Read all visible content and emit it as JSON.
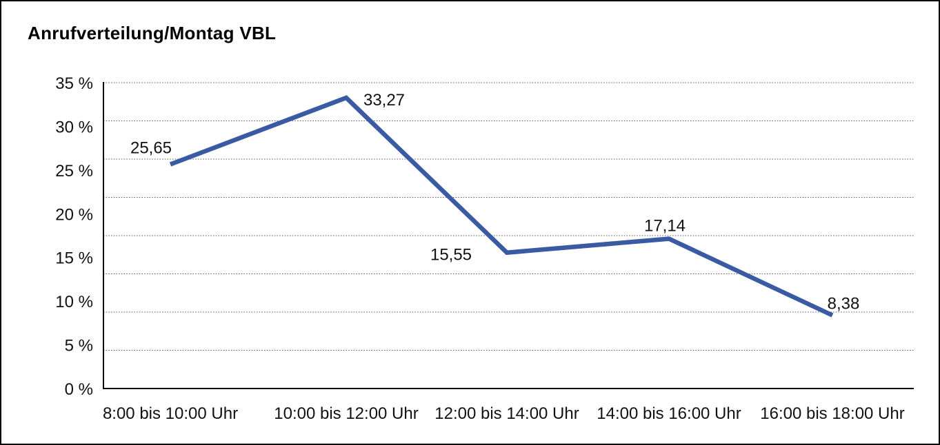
{
  "chart_data": {
    "type": "line",
    "title": "Anrufverteilung/Montag VBL",
    "categories": [
      "8:00 bis 10:00 Uhr",
      "10:00 bis 12:00 Uhr",
      "12:00 bis 14:00 Uhr",
      "14:00 bis 16:00 Uhr",
      "16:00 bis 18:00 Uhr"
    ],
    "series": [
      {
        "name": "Anrufverteilung Montag VBL",
        "values": [
          25.65,
          33.27,
          15.55,
          17.14,
          8.38
        ]
      }
    ],
    "point_labels": [
      "25,65",
      "33,27",
      "15,55",
      "17,14",
      "8,38"
    ],
    "y_tick_values": [
      0,
      5,
      10,
      15,
      20,
      25,
      30,
      35
    ],
    "y_tick_labels": [
      "0 %",
      "5 %",
      "10 %",
      "15 %",
      "20 %",
      "25 %",
      "30 %",
      "35 %"
    ],
    "ylim": [
      0,
      35
    ],
    "xlabel": "",
    "ylabel": "",
    "legend": "none",
    "grid": "horizontal-dotted",
    "gridline_divisions": 8,
    "line_color": "#3a5ba4",
    "axis_color": "#000000",
    "gridline_color": "#555555",
    "text_color": "#111111",
    "background_color": "#ffffff"
  }
}
